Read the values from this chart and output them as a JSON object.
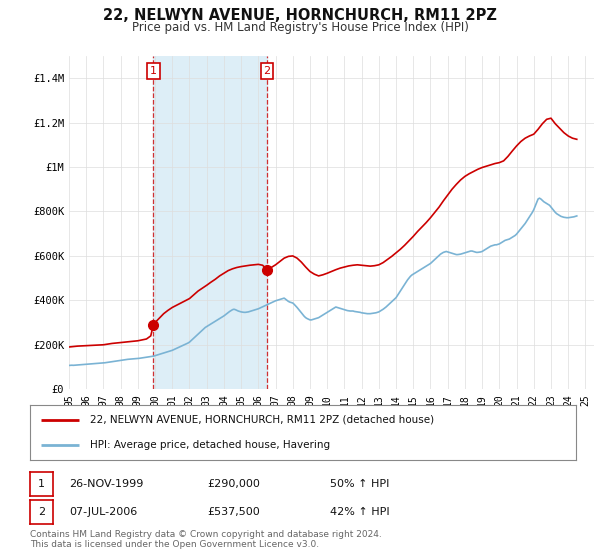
{
  "title": "22, NELWYN AVENUE, HORNCHURCH, RM11 2PZ",
  "subtitle": "Price paid vs. HM Land Registry's House Price Index (HPI)",
  "title_fontsize": 10.5,
  "subtitle_fontsize": 8.5,
  "hpi_color": "#7ab3d4",
  "hpi_fill_color": "#ddeef7",
  "price_color": "#cc0000",
  "marker_color": "#cc0000",
  "ylim": [
    0,
    1500000
  ],
  "xlim_start": 1995.0,
  "xlim_end": 2025.5,
  "yticks": [
    0,
    200000,
    400000,
    600000,
    800000,
    1000000,
    1200000,
    1400000
  ],
  "ytick_labels": [
    "£0",
    "£200K",
    "£400K",
    "£600K",
    "£800K",
    "£1M",
    "£1.2M",
    "£1.4M"
  ],
  "transaction1_x": 1999.9,
  "transaction1_y": 290000,
  "transaction2_x": 2006.5,
  "transaction2_y": 537500,
  "legend_label_red": "22, NELWYN AVENUE, HORNCHURCH, RM11 2PZ (detached house)",
  "legend_label_blue": "HPI: Average price, detached house, Havering",
  "table_rows": [
    {
      "num": "1",
      "date": "26-NOV-1999",
      "price": "£290,000",
      "hpi": "50% ↑ HPI"
    },
    {
      "num": "2",
      "date": "07-JUL-2006",
      "price": "£537,500",
      "hpi": "42% ↑ HPI"
    }
  ],
  "footer": "Contains HM Land Registry data © Crown copyright and database right 2024.\nThis data is licensed under the Open Government Licence v3.0.",
  "hpi_data_years": [
    1995.0,
    1995.083,
    1995.167,
    1995.25,
    1995.333,
    1995.417,
    1995.5,
    1995.583,
    1995.667,
    1995.75,
    1995.833,
    1995.917,
    1996.0,
    1996.083,
    1996.167,
    1996.25,
    1996.333,
    1996.417,
    1996.5,
    1996.583,
    1996.667,
    1996.75,
    1996.833,
    1996.917,
    1997.0,
    1997.083,
    1997.167,
    1997.25,
    1997.333,
    1997.417,
    1997.5,
    1997.583,
    1997.667,
    1997.75,
    1997.833,
    1997.917,
    1998.0,
    1998.083,
    1998.167,
    1998.25,
    1998.333,
    1998.417,
    1998.5,
    1998.583,
    1998.667,
    1998.75,
    1998.833,
    1998.917,
    1999.0,
    1999.083,
    1999.167,
    1999.25,
    1999.333,
    1999.417,
    1999.5,
    1999.583,
    1999.667,
    1999.75,
    1999.833,
    1999.917,
    2000.0,
    2000.083,
    2000.167,
    2000.25,
    2000.333,
    2000.417,
    2000.5,
    2000.583,
    2000.667,
    2000.75,
    2000.833,
    2000.917,
    2001.0,
    2001.083,
    2001.167,
    2001.25,
    2001.333,
    2001.417,
    2001.5,
    2001.583,
    2001.667,
    2001.75,
    2001.833,
    2001.917,
    2002.0,
    2002.083,
    2002.167,
    2002.25,
    2002.333,
    2002.417,
    2002.5,
    2002.583,
    2002.667,
    2002.75,
    2002.833,
    2002.917,
    2003.0,
    2003.083,
    2003.167,
    2003.25,
    2003.333,
    2003.417,
    2003.5,
    2003.583,
    2003.667,
    2003.75,
    2003.833,
    2003.917,
    2004.0,
    2004.083,
    2004.167,
    2004.25,
    2004.333,
    2004.417,
    2004.5,
    2004.583,
    2004.667,
    2004.75,
    2004.833,
    2004.917,
    2005.0,
    2005.083,
    2005.167,
    2005.25,
    2005.333,
    2005.417,
    2005.5,
    2005.583,
    2005.667,
    2005.75,
    2005.833,
    2005.917,
    2006.0,
    2006.083,
    2006.167,
    2006.25,
    2006.333,
    2006.417,
    2006.5,
    2006.583,
    2006.667,
    2006.75,
    2006.833,
    2006.917,
    2007.0,
    2007.083,
    2007.167,
    2007.25,
    2007.333,
    2007.417,
    2007.5,
    2007.583,
    2007.667,
    2007.75,
    2007.833,
    2007.917,
    2008.0,
    2008.083,
    2008.167,
    2008.25,
    2008.333,
    2008.417,
    2008.5,
    2008.583,
    2008.667,
    2008.75,
    2008.833,
    2008.917,
    2009.0,
    2009.083,
    2009.167,
    2009.25,
    2009.333,
    2009.417,
    2009.5,
    2009.583,
    2009.667,
    2009.75,
    2009.833,
    2009.917,
    2010.0,
    2010.083,
    2010.167,
    2010.25,
    2010.333,
    2010.417,
    2010.5,
    2010.583,
    2010.667,
    2010.75,
    2010.833,
    2010.917,
    2011.0,
    2011.083,
    2011.167,
    2011.25,
    2011.333,
    2011.417,
    2011.5,
    2011.583,
    2011.667,
    2011.75,
    2011.833,
    2011.917,
    2012.0,
    2012.083,
    2012.167,
    2012.25,
    2012.333,
    2012.417,
    2012.5,
    2012.583,
    2012.667,
    2012.75,
    2012.833,
    2012.917,
    2013.0,
    2013.083,
    2013.167,
    2013.25,
    2013.333,
    2013.417,
    2013.5,
    2013.583,
    2013.667,
    2013.75,
    2013.833,
    2013.917,
    2014.0,
    2014.083,
    2014.167,
    2014.25,
    2014.333,
    2014.417,
    2014.5,
    2014.583,
    2014.667,
    2014.75,
    2014.833,
    2014.917,
    2015.0,
    2015.083,
    2015.167,
    2015.25,
    2015.333,
    2015.417,
    2015.5,
    2015.583,
    2015.667,
    2015.75,
    2015.833,
    2015.917,
    2016.0,
    2016.083,
    2016.167,
    2016.25,
    2016.333,
    2016.417,
    2016.5,
    2016.583,
    2016.667,
    2016.75,
    2016.833,
    2016.917,
    2017.0,
    2017.083,
    2017.167,
    2017.25,
    2017.333,
    2017.417,
    2017.5,
    2017.583,
    2017.667,
    2017.75,
    2017.833,
    2017.917,
    2018.0,
    2018.083,
    2018.167,
    2018.25,
    2018.333,
    2018.417,
    2018.5,
    2018.583,
    2018.667,
    2018.75,
    2018.833,
    2018.917,
    2019.0,
    2019.083,
    2019.167,
    2019.25,
    2019.333,
    2019.417,
    2019.5,
    2019.583,
    2019.667,
    2019.75,
    2019.833,
    2019.917,
    2020.0,
    2020.083,
    2020.167,
    2020.25,
    2020.333,
    2020.417,
    2020.5,
    2020.583,
    2020.667,
    2020.75,
    2020.833,
    2020.917,
    2021.0,
    2021.083,
    2021.167,
    2021.25,
    2021.333,
    2021.417,
    2021.5,
    2021.583,
    2021.667,
    2021.75,
    2021.833,
    2021.917,
    2022.0,
    2022.083,
    2022.167,
    2022.25,
    2022.333,
    2022.417,
    2022.5,
    2022.583,
    2022.667,
    2022.75,
    2022.833,
    2022.917,
    2023.0,
    2023.083,
    2023.167,
    2023.25,
    2023.333,
    2023.417,
    2023.5,
    2023.583,
    2023.667,
    2023.75,
    2023.833,
    2023.917,
    2024.0,
    2024.083,
    2024.167,
    2024.25,
    2024.333,
    2024.417,
    2024.5
  ],
  "hpi_data_values": [
    107000,
    107500,
    108000,
    107500,
    108000,
    108500,
    109000,
    109500,
    110000,
    110500,
    111000,
    111500,
    112000,
    112500,
    113000,
    113500,
    114000,
    114500,
    115000,
    115500,
    116000,
    116500,
    117000,
    117500,
    118000,
    119000,
    120000,
    121000,
    122000,
    123000,
    124000,
    125000,
    126000,
    127000,
    128000,
    129000,
    130000,
    131000,
    132000,
    133000,
    134000,
    134500,
    135000,
    135500,
    136000,
    136500,
    137000,
    137500,
    138000,
    139000,
    140000,
    141000,
    142000,
    143000,
    144000,
    145000,
    146000,
    147000,
    148000,
    149000,
    151000,
    153000,
    155000,
    157000,
    159000,
    161000,
    163000,
    165000,
    167000,
    169000,
    171000,
    173000,
    175000,
    178000,
    181000,
    184000,
    187000,
    190000,
    193000,
    196000,
    199000,
    202000,
    205000,
    208000,
    212000,
    218000,
    224000,
    230000,
    236000,
    242000,
    248000,
    254000,
    260000,
    266000,
    272000,
    278000,
    282000,
    286000,
    290000,
    294000,
    298000,
    302000,
    306000,
    310000,
    314000,
    318000,
    322000,
    326000,
    330000,
    335000,
    340000,
    345000,
    350000,
    354000,
    358000,
    360000,
    358000,
    355000,
    352000,
    350000,
    348000,
    347000,
    346000,
    346000,
    347000,
    348000,
    350000,
    352000,
    354000,
    356000,
    358000,
    360000,
    362000,
    365000,
    368000,
    371000,
    374000,
    377000,
    380000,
    383000,
    386000,
    389000,
    392000,
    395000,
    398000,
    400000,
    402000,
    404000,
    406000,
    408000,
    410000,
    405000,
    400000,
    395000,
    392000,
    390000,
    388000,
    382000,
    375000,
    368000,
    360000,
    352000,
    344000,
    336000,
    328000,
    322000,
    318000,
    315000,
    312000,
    312000,
    314000,
    316000,
    318000,
    320000,
    322000,
    326000,
    330000,
    334000,
    338000,
    342000,
    346000,
    350000,
    354000,
    358000,
    362000,
    366000,
    370000,
    368000,
    366000,
    364000,
    362000,
    360000,
    358000,
    356000,
    354000,
    353000,
    352000,
    352000,
    352000,
    350000,
    349000,
    348000,
    347000,
    346000,
    344000,
    343000,
    342000,
    341000,
    340000,
    340000,
    340000,
    341000,
    342000,
    343000,
    344000,
    346000,
    348000,
    352000,
    356000,
    360000,
    365000,
    370000,
    376000,
    382000,
    388000,
    394000,
    400000,
    406000,
    412000,
    422000,
    432000,
    442000,
    452000,
    462000,
    472000,
    482000,
    492000,
    500000,
    508000,
    514000,
    518000,
    522000,
    526000,
    530000,
    534000,
    538000,
    542000,
    546000,
    550000,
    554000,
    558000,
    562000,
    566000,
    572000,
    578000,
    584000,
    590000,
    596000,
    602000,
    608000,
    612000,
    616000,
    618000,
    620000,
    618000,
    616000,
    614000,
    612000,
    610000,
    608000,
    606000,
    606000,
    607000,
    608000,
    610000,
    612000,
    614000,
    616000,
    618000,
    620000,
    622000,
    622000,
    620000,
    618000,
    616000,
    616000,
    617000,
    618000,
    620000,
    624000,
    628000,
    632000,
    636000,
    640000,
    644000,
    646000,
    648000,
    650000,
    650000,
    652000,
    654000,
    658000,
    662000,
    666000,
    670000,
    672000,
    674000,
    676000,
    680000,
    684000,
    688000,
    692000,
    698000,
    706000,
    714000,
    722000,
    730000,
    738000,
    746000,
    756000,
    766000,
    776000,
    786000,
    796000,
    808000,
    824000,
    840000,
    856000,
    860000,
    856000,
    850000,
    844000,
    840000,
    836000,
    832000,
    828000,
    820000,
    812000,
    804000,
    796000,
    790000,
    786000,
    782000,
    778000,
    776000,
    774000,
    773000,
    772000,
    772000,
    773000,
    774000,
    775000,
    776000,
    778000,
    780000
  ],
  "price_data_years": [
    1995.0,
    1995.25,
    1995.5,
    1995.75,
    1996.0,
    1996.25,
    1996.5,
    1996.75,
    1997.0,
    1997.25,
    1997.5,
    1997.75,
    1998.0,
    1998.25,
    1998.5,
    1998.75,
    1999.0,
    1999.25,
    1999.5,
    1999.75,
    1999.9,
    2000.0,
    2000.25,
    2000.5,
    2000.75,
    2001.0,
    2001.25,
    2001.5,
    2001.75,
    2002.0,
    2002.25,
    2002.5,
    2002.75,
    2003.0,
    2003.25,
    2003.5,
    2003.75,
    2004.0,
    2004.25,
    2004.5,
    2004.75,
    2005.0,
    2005.25,
    2005.5,
    2005.75,
    2006.0,
    2006.25,
    2006.5,
    2006.75,
    2007.0,
    2007.25,
    2007.5,
    2007.75,
    2008.0,
    2008.25,
    2008.5,
    2008.75,
    2009.0,
    2009.25,
    2009.5,
    2009.75,
    2010.0,
    2010.25,
    2010.5,
    2010.75,
    2011.0,
    2011.25,
    2011.5,
    2011.75,
    2012.0,
    2012.25,
    2012.5,
    2012.75,
    2013.0,
    2013.25,
    2013.5,
    2013.75,
    2014.0,
    2014.25,
    2014.5,
    2014.75,
    2015.0,
    2015.25,
    2015.5,
    2015.75,
    2016.0,
    2016.25,
    2016.5,
    2016.75,
    2017.0,
    2017.25,
    2017.5,
    2017.75,
    2018.0,
    2018.25,
    2018.5,
    2018.75,
    2019.0,
    2019.25,
    2019.5,
    2019.75,
    2020.0,
    2020.25,
    2020.5,
    2020.75,
    2021.0,
    2021.25,
    2021.5,
    2021.75,
    2022.0,
    2022.25,
    2022.5,
    2022.75,
    2023.0,
    2023.25,
    2023.5,
    2023.75,
    2024.0,
    2024.25,
    2024.5
  ],
  "price_data_values": [
    190000,
    192000,
    194000,
    195000,
    196000,
    197000,
    198000,
    199000,
    200000,
    203000,
    206000,
    208000,
    210000,
    212000,
    214000,
    216000,
    218000,
    222000,
    226000,
    240000,
    290000,
    300000,
    320000,
    340000,
    355000,
    368000,
    378000,
    388000,
    398000,
    408000,
    425000,
    442000,
    455000,
    468000,
    482000,
    495000,
    510000,
    522000,
    534000,
    542000,
    548000,
    552000,
    555000,
    558000,
    560000,
    562000,
    558000,
    537500,
    548000,
    560000,
    575000,
    590000,
    598000,
    600000,
    590000,
    572000,
    550000,
    530000,
    518000,
    510000,
    515000,
    522000,
    530000,
    538000,
    545000,
    550000,
    555000,
    558000,
    560000,
    558000,
    556000,
    554000,
    556000,
    560000,
    570000,
    584000,
    598000,
    614000,
    630000,
    648000,
    668000,
    688000,
    710000,
    730000,
    750000,
    772000,
    796000,
    820000,
    848000,
    874000,
    900000,
    922000,
    942000,
    958000,
    970000,
    980000,
    990000,
    998000,
    1004000,
    1010000,
    1016000,
    1020000,
    1028000,
    1048000,
    1072000,
    1095000,
    1115000,
    1130000,
    1140000,
    1148000,
    1170000,
    1195000,
    1215000,
    1220000,
    1195000,
    1175000,
    1155000,
    1140000,
    1130000,
    1125000
  ],
  "vline1_x": 1999.9,
  "vline2_x": 2006.5,
  "background_color": "#ffffff",
  "grid_color": "#dddddd"
}
